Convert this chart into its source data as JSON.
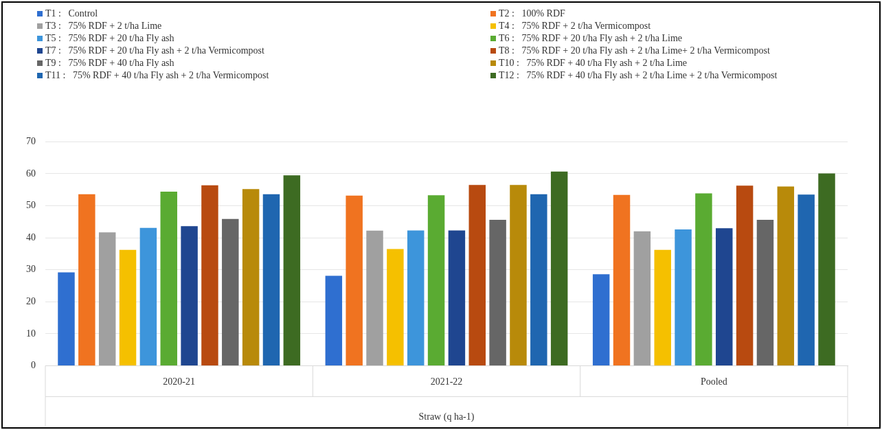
{
  "chart_data": {
    "type": "bar",
    "xlabel": "Straw (q ha-1)",
    "categories": [
      "2020-21",
      "2021-22",
      "Pooled"
    ],
    "series": [
      {
        "name": "T1 :   Control",
        "color": "#2f6fd0",
        "values": [
          29.2,
          28.1,
          28.6
        ]
      },
      {
        "name": "T2 :   100% RDF",
        "color": "#f07320",
        "values": [
          53.6,
          53.2,
          53.4
        ]
      },
      {
        "name": "T3 :   75% RDF + 2 t/ha Lime",
        "color": "#a0a0a0",
        "values": [
          41.7,
          42.2,
          42.0
        ]
      },
      {
        "name": "T4 :   75% RDF + 2 t/ha Vermicompost",
        "color": "#f5c000",
        "values": [
          36.2,
          36.5,
          36.2
        ]
      },
      {
        "name": "T5 :   75% RDF + 20 t/ha Fly ash",
        "color": "#3d95db",
        "values": [
          43.1,
          42.3,
          42.6
        ]
      },
      {
        "name": "T6 :   75% RDF + 20 t/ha Fly ash + 2 t/ha Lime",
        "color": "#5aab32",
        "values": [
          54.4,
          53.3,
          53.9
        ]
      },
      {
        "name": "T7 :   75% RDF + 20 t/ha Fly ash + 2 t/ha Vermicompost",
        "color": "#1f4690",
        "values": [
          43.6,
          42.3,
          43.0
        ]
      },
      {
        "name": "T8 :   75% RDF + 20 t/ha Fly ash + 2 t/ha Lime+ 2 t/ha Vermicompost",
        "color": "#b84a10",
        "values": [
          56.4,
          56.5,
          56.3
        ]
      },
      {
        "name": "T9 :   75% RDF + 40 t/ha Fly ash",
        "color": "#666666",
        "values": [
          45.9,
          45.6,
          45.6
        ]
      },
      {
        "name": "T10 :   75% RDF + 40 t/ha Fly ash + 2 t/ha Lime",
        "color": "#b88a0a",
        "values": [
          55.2,
          56.5,
          56.0
        ]
      },
      {
        "name": "T11 :   75% RDF + 40 t/ha Fly ash + 2 t/ha Vermicompost",
        "color": "#1f66b0",
        "values": [
          53.6,
          53.6,
          53.5
        ]
      },
      {
        "name": "T12 :   75% RDF + 40 t/ha Fly ash + 2 t/ha Lime + 2 t/ha Vermicompost",
        "color": "#3d6b22",
        "values": [
          59.5,
          60.7,
          60.1
        ]
      }
    ],
    "ylim": [
      0,
      70
    ],
    "yticks": [
      0,
      10,
      20,
      30,
      40,
      50,
      60,
      70
    ],
    "grid": "y",
    "legend": "top"
  }
}
